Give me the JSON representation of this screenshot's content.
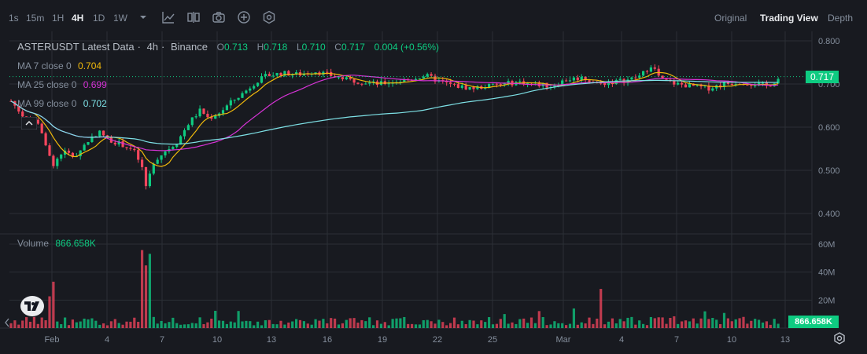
{
  "toolbar": {
    "timeframes": [
      "1s",
      "15m",
      "1H",
      "4H",
      "1D",
      "1W"
    ],
    "active_timeframe": "4H",
    "views": [
      "Original",
      "Trading View",
      "Depth"
    ],
    "active_view": "Trading View"
  },
  "legend": {
    "symbol": "ASTERUSDT Latest Data",
    "interval": "4h",
    "exchange": "Binance",
    "open_label": "O",
    "open": "0.713",
    "high_label": "H",
    "high": "0.718",
    "low_label": "L",
    "low": "0.710",
    "close_label": "C",
    "close": "0.717",
    "change": "0.004 (+0.56%)"
  },
  "mas": [
    {
      "label": "MA 7 close 0",
      "value": "0.704",
      "color": "#f0b90b"
    },
    {
      "label": "MA 25 close 0",
      "value": "0.699",
      "color": "#d633d6"
    },
    {
      "label": "MA 99 close 0",
      "value": "0.702",
      "color": "#7ee1e6"
    }
  ],
  "volume": {
    "label": "Volume",
    "value": "866.658K"
  },
  "price_axis": [
    "0.800",
    "0.700",
    "0.600",
    "0.500",
    "0.400"
  ],
  "volume_axis": [
    "60M",
    "40M",
    "20M"
  ],
  "current_price": "0.717",
  "current_volume": "866.658K",
  "date_axis": [
    "Feb",
    "4",
    "7",
    "10",
    "13",
    "16",
    "19",
    "22",
    "25",
    "Mar",
    "4",
    "7",
    "10",
    "13"
  ],
  "colors": {
    "up": "#0ecb81",
    "down": "#f6465d",
    "bg": "#181a20",
    "grid": "#2b2f36"
  }
}
